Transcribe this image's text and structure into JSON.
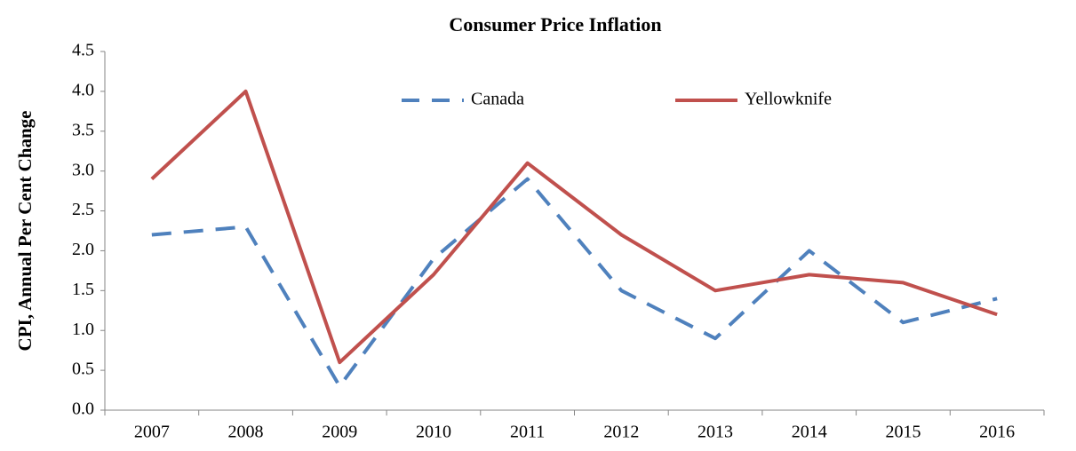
{
  "chart_data": {
    "type": "line",
    "title": "Consumer Price Inflation",
    "y_label": "CPI, Annual Per Cent Change",
    "categories": [
      "2007",
      "2008",
      "2009",
      "2010",
      "2011",
      "2012",
      "2013",
      "2014",
      "2015",
      "2016"
    ],
    "series": [
      {
        "name": "Canada",
        "color": "#4f81bd",
        "dash": true,
        "values": [
          2.2,
          2.3,
          0.3,
          1.9,
          2.9,
          1.5,
          0.9,
          2.0,
          1.1,
          1.4
        ]
      },
      {
        "name": "Yellowknife",
        "color": "#c0504d",
        "dash": false,
        "values": [
          2.9,
          4.0,
          0.6,
          1.7,
          3.1,
          2.2,
          1.5,
          1.7,
          1.6,
          1.2
        ]
      }
    ],
    "ylim": [
      0,
      4.5
    ],
    "yticks": [
      {
        "value": 0,
        "label": "0.0"
      },
      0.5,
      {
        "value": 1,
        "label": "1.0"
      },
      1.5,
      {
        "value": 2,
        "label": "2.0"
      },
      2.5,
      {
        "value": 3,
        "label": "3.0"
      },
      3.5,
      {
        "value": 4,
        "label": "4.0"
      },
      4.5
    ],
    "grid": false,
    "legend": "top"
  }
}
